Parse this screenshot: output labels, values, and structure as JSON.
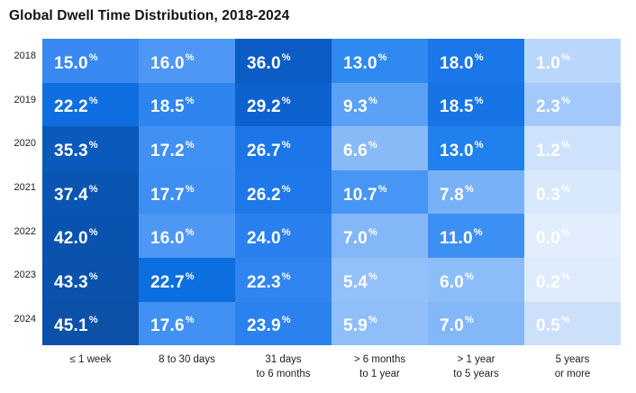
{
  "title": "Global Dwell Time Distribution, 2018-2024",
  "chart_data": {
    "type": "heatmap",
    "title": "Global Dwell Time Distribution, 2018-2024",
    "unit": "%",
    "rows": [
      "2018",
      "2019",
      "2020",
      "2021",
      "2022",
      "2023",
      "2024"
    ],
    "columns": [
      "≤ 1 week",
      "8 to 30 days",
      "31 days to 6 months",
      "> 6 months to 1 year",
      "> 1 year to 5 years",
      "5 years or more"
    ],
    "column_label_lines": [
      [
        "≤ 1 week"
      ],
      [
        "8 to 30 days"
      ],
      [
        "31 days",
        "to 6 months"
      ],
      [
        "> 6 months",
        "to 1 year"
      ],
      [
        "> 1 year",
        "to 5 years"
      ],
      [
        "5 years",
        "or more"
      ]
    ],
    "values": [
      [
        15.0,
        16.0,
        36.0,
        13.0,
        18.0,
        1.0
      ],
      [
        22.2,
        18.5,
        29.2,
        9.3,
        18.5,
        2.3
      ],
      [
        35.3,
        17.2,
        26.7,
        6.6,
        13.0,
        1.2
      ],
      [
        37.4,
        17.7,
        26.2,
        10.7,
        7.8,
        0.3
      ],
      [
        42.0,
        16.0,
        24.0,
        7.0,
        11.0,
        0.0
      ],
      [
        43.3,
        22.7,
        22.3,
        5.4,
        6.0,
        0.2
      ],
      [
        45.1,
        17.6,
        23.9,
        5.9,
        7.0,
        0.5
      ]
    ],
    "value_labels": [
      [
        "15.0",
        "16.0",
        "36.0",
        "13.0",
        "18.0",
        "1.0"
      ],
      [
        "22.2",
        "18.5",
        "29.2",
        "9.3",
        "18.5",
        "2.3"
      ],
      [
        "35.3",
        "17.2",
        "26.7",
        "6.6",
        "13.0",
        "1.2"
      ],
      [
        "37.4",
        "17.7",
        "26.2",
        "10.7",
        "7.8",
        "0.3"
      ],
      [
        "42.0",
        "16.0",
        "24.0",
        "7.0",
        "11.0",
        "0.0"
      ],
      [
        "43.3",
        "22.7",
        "22.3",
        "5.4",
        "6.0",
        "0.2"
      ],
      [
        "45.1",
        "17.6",
        "23.9",
        "5.9",
        "7.0",
        "0.5"
      ]
    ],
    "cell_colors": [
      [
        "#3a88f1",
        "#4e97f5",
        "#0b5cc4",
        "#2e8af0",
        "#1b76e9",
        "#b9d6fb"
      ],
      [
        "#0f6fe0",
        "#2e85f0",
        "#0d62cf",
        "#5ba1f6",
        "#1674e7",
        "#a3c9fa"
      ],
      [
        "#0b5abb",
        "#4190f4",
        "#1d76e8",
        "#89baf8",
        "#2080ed",
        "#cfe2fc"
      ],
      [
        "#0a55b2",
        "#3e8ef3",
        "#1f78e9",
        "#4795f4",
        "#79b1f7",
        "#d8e9fd"
      ],
      [
        "#0953ae",
        "#4e97f5",
        "#2a80ee",
        "#84b7f8",
        "#3d90f3",
        "#e2edfd"
      ],
      [
        "#0a52ab",
        "#0d6ee0",
        "#3285f0",
        "#93c0f9",
        "#8dbdf9",
        "#deebfd"
      ],
      [
        "#0b51a8",
        "#4190f4",
        "#2b81ee",
        "#8fbef9",
        "#84b7f8",
        "#cce0fc"
      ]
    ],
    "layout": {
      "legend": "none",
      "grid": "off",
      "value_text_color": "#ffffff",
      "title_color": "#141418",
      "label_color": "#202124",
      "scale_min_color": "#e2edfd",
      "scale_max_color": "#0b51a8"
    }
  }
}
